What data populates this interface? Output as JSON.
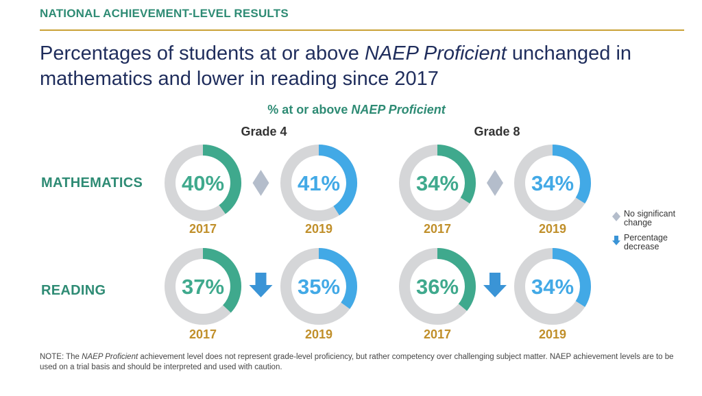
{
  "header": {
    "section_title": "NATIONAL ACHIEVEMENT-LEVEL RESULTS",
    "headline_part1": "Percentages of students at or above ",
    "headline_em": "NAEP Proficient",
    "headline_part2": " unchanged in mathematics and lower in reading since 2017"
  },
  "chart_title": {
    "prefix": "% at or above ",
    "em": "NAEP Proficient"
  },
  "colors": {
    "teal": "#3fa98d",
    "blue": "#42a9e6",
    "ring_gray": "#d5d6d8",
    "diamond": "#b4bdcb",
    "arrow": "#3a94d6",
    "year_gold": "#c08f2a"
  },
  "chart_data": {
    "type": "donut",
    "groups": [
      "Grade 4",
      "Grade  8"
    ],
    "subjects": [
      "MATHEMATICS",
      "READING"
    ],
    "years": [
      "2017",
      "2019"
    ],
    "cells": [
      {
        "subject": "MATHEMATICS",
        "grade": "Grade 4",
        "v2017": 40,
        "v2019": 41,
        "change": "no-significant-change"
      },
      {
        "subject": "MATHEMATICS",
        "grade": "Grade  8",
        "v2017": 34,
        "v2019": 34,
        "change": "no-significant-change"
      },
      {
        "subject": "READING",
        "grade": "Grade 4",
        "v2017": 37,
        "v2019": 35,
        "change": "percentage-decrease"
      },
      {
        "subject": "READING",
        "grade": "Grade  8",
        "v2017": 36,
        "v2019": 34,
        "change": "percentage-decrease"
      }
    ]
  },
  "legend": {
    "no_change": "No significant change",
    "decrease": "Percentage decrease"
  },
  "note": {
    "prefix": "NOTE: The ",
    "em": "NAEP Proficient",
    "rest": " achievement level does not represent grade-level proficiency, but rather competency over challenging subject matter. NAEP achievement levels are to be used on a trial basis and should be interpreted and used with caution."
  }
}
